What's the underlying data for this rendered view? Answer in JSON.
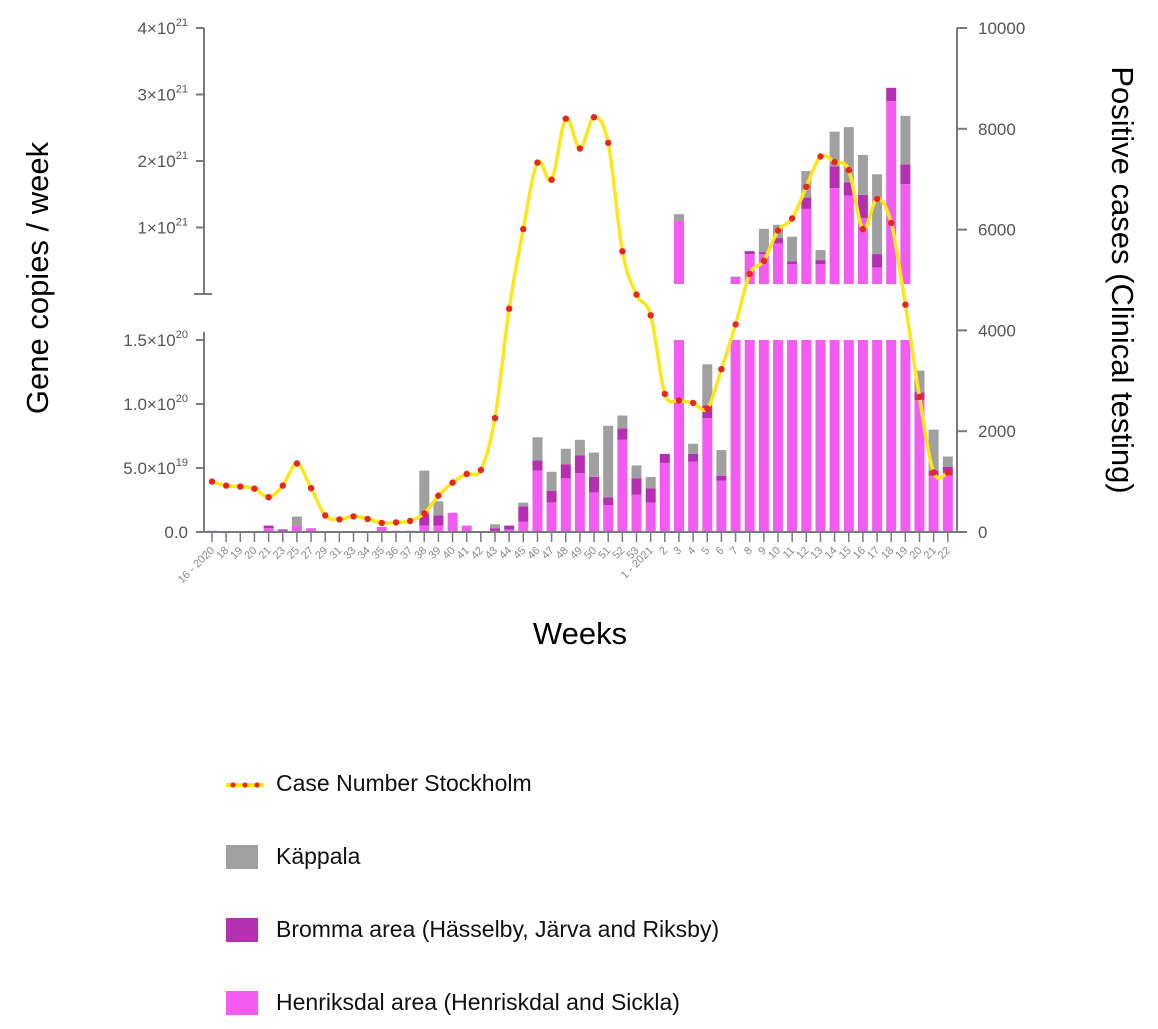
{
  "chart_data": {
    "type": "bar",
    "subtype": "stacked bar with broken left axis and overlaid line on secondary axis",
    "xlabel": "Weeks",
    "ylabel_left": "Gene copies / week",
    "ylabel_right": "Positive cases (Clinical testing)",
    "left_axis_lower": {
      "range": [
        0,
        1.5e+20
      ],
      "tick_labels": [
        "0.0",
        "5.0×10",
        "1.0×10",
        "1.5×10"
      ],
      "tick_exponents": [
        "",
        "19",
        "20",
        "20"
      ]
    },
    "left_axis_upper": {
      "range": [
        0,
        4e+21
      ],
      "tick_labels": [
        "1×10",
        "2×10",
        "3×10",
        "4×10"
      ],
      "tick_exponents": [
        "21",
        "21",
        "21",
        "21"
      ]
    },
    "right_axis": {
      "range": [
        0,
        10000
      ],
      "tick_labels": [
        "0",
        "2000",
        "4000",
        "6000",
        "8000",
        "10000"
      ]
    },
    "categories": [
      "16 - 2020",
      "18",
      "19",
      "20",
      "21",
      "23",
      "25",
      "27",
      "29",
      "31",
      "33",
      "34",
      "35",
      "36",
      "37",
      "38",
      "39",
      "40",
      "41",
      "42",
      "43",
      "44",
      "45",
      "46",
      "47",
      "48",
      "49",
      "50",
      "51",
      "52",
      "53",
      "1 - 2021",
      "2",
      "3",
      "4",
      "5",
      "6",
      "7",
      "8",
      "9",
      "10",
      "11",
      "12",
      "13",
      "14",
      "15",
      "16",
      "17",
      "18",
      "19",
      "20",
      "21",
      "22"
    ],
    "series": [
      {
        "name": "Henriksdal area (Henriskdal and Sickla)",
        "color": "#f25cf0",
        "values": [
          1e+18,
          0,
          0,
          0,
          3e+18,
          1e+18,
          5e+18,
          3e+18,
          0,
          0,
          0,
          0,
          4e+18,
          1e+18,
          1e+18,
          5e+18,
          5e+18,
          1.5e+19,
          5e+18,
          0,
          1e+18,
          2e+18,
          8e+18,
          4.8e+19,
          2.3e+19,
          4.2e+19,
          4.6e+19,
          3.1e+19,
          2.1e+19,
          7.2e+19,
          2.9e+19,
          2.3e+19,
          5.4e+19,
          1.1e+21,
          5.5e+19,
          8.9e+19,
          4e+19,
          2.5e+20,
          6e+20,
          6e+20,
          7.6e+20,
          4.5e+20,
          1.28e+21,
          4.5e+20,
          1.59e+21,
          1.48e+21,
          1.14e+21,
          4e+20,
          2.9e+21,
          1.65e+21,
          1.03e+20,
          4.4e+19,
          4.4e+19
        ]
      },
      {
        "name": "Bromma area (Hässelby, Järva and Riksby)",
        "color": "#b52fb1",
        "values": [
          0,
          0,
          0,
          0,
          2e+18,
          1e+18,
          0,
          0,
          0,
          0,
          0,
          0,
          0,
          0,
          0,
          9e+18,
          8e+18,
          0,
          0,
          0,
          2e+18,
          3e+18,
          1.2e+19,
          8e+18,
          9e+18,
          1.1e+19,
          1.4e+19,
          1.2e+19,
          6e+18,
          9e+18,
          1.3e+19,
          1.1e+19,
          7e+18,
          0,
          6e+18,
          1e+19,
          4e+18,
          7e+18,
          4e+19,
          3e+19,
          8e+19,
          4e+19,
          1.7e+20,
          6e+19,
          3.3e+20,
          2e+20,
          3.5e+20,
          2e+20,
          2e+20,
          3e+20,
          6e+18,
          4e+18,
          7e+18
        ]
      },
      {
        "name": "Käppala",
        "color": "#a0a0a0",
        "values": [
          0,
          0,
          0,
          0,
          0,
          0,
          7e+18,
          0,
          0,
          0,
          0,
          0,
          0,
          0,
          0,
          3.4e+19,
          1.1e+19,
          0,
          0,
          0,
          3e+18,
          0,
          3e+18,
          1.8e+19,
          1.5e+19,
          1.2e+19,
          1.2e+19,
          1.9e+19,
          5.6e+19,
          1e+19,
          1e+19,
          9e+18,
          0,
          1e+20,
          8e+18,
          3.2e+19,
          2e+19,
          3e+18,
          1e+19,
          3.5e+20,
          2e+20,
          3.7e+20,
          4e+20,
          1.5e+20,
          5.2e+20,
          8.3e+20,
          6e+20,
          1.2e+21,
          0,
          7.3e+20,
          1.7e+19,
          3.2e+19,
          8e+18
        ]
      }
    ],
    "line_series": {
      "name": "Case Number Stockholm",
      "color": "#ffe619",
      "marker_color": "#e8261c",
      "axis": "right",
      "values": [
        1000,
        920,
        900,
        860,
        690,
        920,
        1360,
        870,
        330,
        250,
        310,
        260,
        180,
        190,
        220,
        370,
        720,
        980,
        1150,
        1230,
        2260,
        4430,
        6010,
        7330,
        6990,
        8200,
        7610,
        8230,
        7720,
        5570,
        4710,
        4300,
        2740,
        2610,
        2560,
        2450,
        3230,
        4120,
        5120,
        5380,
        5980,
        6220,
        6850,
        7450,
        7340,
        7180,
        6010,
        6610,
        6130,
        4510,
        2680,
        1180,
        1180
      ]
    },
    "legend_position": "bottom-left",
    "grid": false
  }
}
